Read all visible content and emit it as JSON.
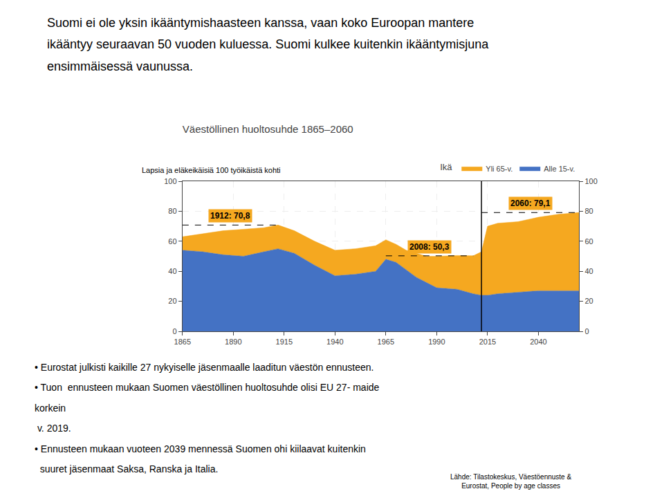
{
  "chart_data": {
    "type": "area",
    "stacked": true,
    "title": "Väestöllinen huoltosuhde 1865–2060",
    "y_label": "Lapsia ja eläkeikäisiä 100 työikäistä kohti",
    "legend_title": "Ikä",
    "legend": "top right",
    "grid": true,
    "x": [
      1865,
      1875,
      1885,
      1895,
      1905,
      1912,
      1920,
      1930,
      1940,
      1950,
      1960,
      1965,
      1970,
      1975,
      1980,
      1985,
      1990,
      2000,
      2008,
      2012,
      2015,
      2020,
      2030,
      2040,
      2050,
      2060
    ],
    "series": [
      {
        "name": "Yli 65-v.",
        "color": "#F5A820",
        "values": [
          9,
          12,
          16,
          18,
          16,
          15.8,
          15,
          16,
          17,
          17,
          17,
          13,
          12,
          13,
          16,
          17.5,
          21,
          22.5,
          25.3,
          29,
          46,
          47,
          47,
          49,
          51,
          52.1
        ]
      },
      {
        "name": "Alle 15-v.",
        "color": "#4472C4",
        "values": [
          54,
          53,
          51,
          50,
          53,
          55,
          52,
          44,
          37,
          38,
          40,
          48,
          46,
          41,
          36,
          32.5,
          29,
          28,
          25,
          24,
          24,
          25,
          26,
          27,
          27,
          27
        ]
      }
    ],
    "xlim": [
      1865,
      2060
    ],
    "xticks": [
      1865,
      1890,
      1915,
      1940,
      1965,
      1990,
      2015,
      2040
    ],
    "ylim": [
      0,
      100
    ],
    "yticks": [
      0,
      20,
      40,
      60,
      80,
      100
    ],
    "y2lim": [
      0,
      100
    ],
    "y2ticks": [
      0,
      20,
      40,
      60,
      80,
      100
    ],
    "vline": 2012,
    "annotations": [
      {
        "text": "1912: 70,8",
        "y": 70.8,
        "x": [
          1865,
          1912
        ]
      },
      {
        "text": "2008: 50,3",
        "y": 50.3,
        "x": [
          1965,
          2008
        ]
      },
      {
        "text": "2060: 79,1",
        "y": 79.1,
        "x": [
          2012,
          2060
        ]
      }
    ],
    "intro": [
      "Suomi ei ole yksin ikääntymishaasteen kanssa, vaan koko Euroopan mantere",
      "ikääntyy seuraavan 50 vuoden kuluessa. Suomi kulkee kuitenkin ikääntymisjuna",
      "ensimmäisessä vaunussa."
    ],
    "notes": [
      "• Eurostat julkisti kaikille 27 nykyiselle jäsenmaalle laaditun väestön ennusteen.",
      "• Tuon  ennusteen mukaan Suomen väestöllinen huoltosuhde olisi EU 27- maide",
      "korkein",
      " v. 2019.",
      "• Ennusteen mukaan vuoteen 2039 mennessä Suomen ohi kiilaavat kuitenkin",
      "  suuret jäsenmaat Saksa, Ranska ja Italia."
    ],
    "source": "Lähde: Tilastokeskus, Väestöennuste &\nEurostat, People by age classes"
  }
}
